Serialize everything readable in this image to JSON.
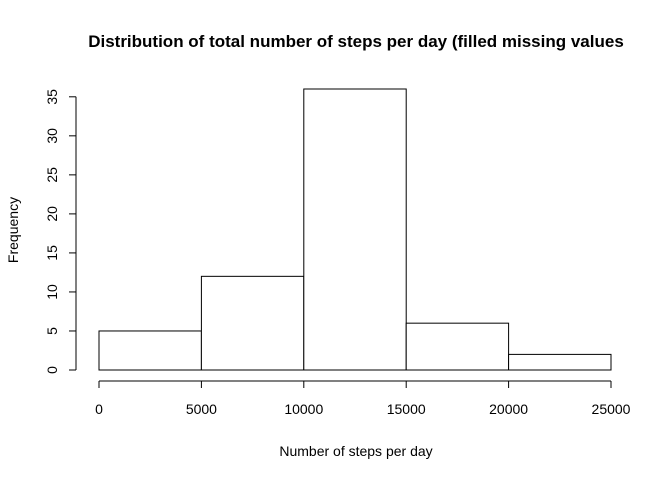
{
  "chart_data": {
    "type": "histogram",
    "title": "Distribution of total number of steps per day (filled missing values",
    "xlabel": "Number of steps per day",
    "ylabel": "Frequency",
    "bins": [
      {
        "from": 0,
        "to": 5000,
        "count": 5
      },
      {
        "from": 5000,
        "to": 10000,
        "count": 12
      },
      {
        "from": 10000,
        "to": 15000,
        "count": 36
      },
      {
        "from": 15000,
        "to": 20000,
        "count": 6
      },
      {
        "from": 20000,
        "to": 25000,
        "count": 2
      }
    ],
    "xticks": [
      0,
      5000,
      10000,
      15000,
      20000,
      25000
    ],
    "yticks": [
      0,
      5,
      10,
      15,
      20,
      25,
      30,
      35
    ],
    "xlim": [
      0,
      25000
    ],
    "ylim": [
      0,
      36
    ],
    "bar_fill": "#ffffff",
    "bar_stroke": "#000000",
    "grid": false
  }
}
